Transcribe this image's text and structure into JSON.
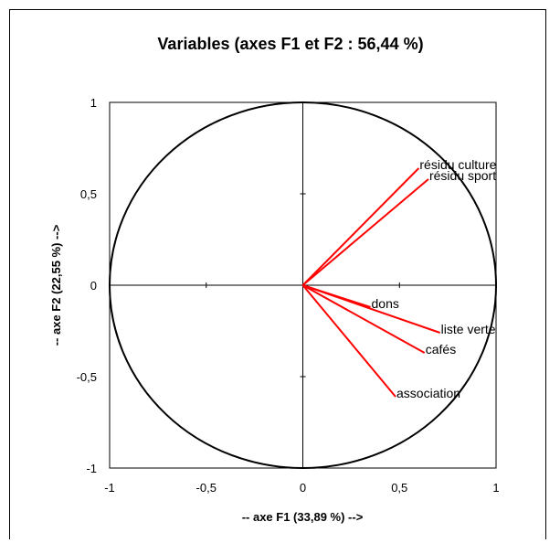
{
  "chart_data": {
    "type": "scatter",
    "title": "Variables (axes F1 et F2 : 56,44 %)",
    "xlabel": "-- axe F1 (33,89 %) -->",
    "ylabel": "-- axe F2 (22,55 %) -->",
    "xlim": [
      -1,
      1
    ],
    "ylim": [
      -1,
      1
    ],
    "xticks": [
      -1,
      -0.5,
      0,
      0.5,
      1
    ],
    "yticks": [
      -1,
      -0.5,
      0,
      0.5,
      1
    ],
    "xtick_labels": [
      "-1",
      "-0,5",
      "0",
      "0,5",
      "1"
    ],
    "ytick_labels": [
      "-1",
      "-0,5",
      "0",
      "0,5",
      "1"
    ],
    "unit_circle": true,
    "grid": false,
    "vector_color": "#ff0000",
    "vectors": [
      {
        "name": "résidu culture",
        "x": 0.6,
        "y": 0.64
      },
      {
        "name": "résidu sport",
        "x": 0.65,
        "y": 0.58
      },
      {
        "name": "dons",
        "x": 0.35,
        "y": -0.12
      },
      {
        "name": "liste verte",
        "x": 0.71,
        "y": -0.26
      },
      {
        "name": "cafés",
        "x": 0.63,
        "y": -0.37
      },
      {
        "name": "association",
        "x": 0.48,
        "y": -0.61
      }
    ]
  }
}
